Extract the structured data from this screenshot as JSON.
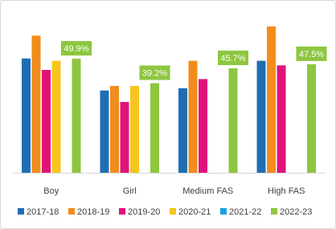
{
  "chart_data": {
    "type": "bar",
    "categories": [
      "Boy",
      "Girl",
      "Medium FAS",
      "High FAS"
    ],
    "series": [
      {
        "name": "2017-18",
        "color": "#1f6eb4",
        "values": [
          50,
          36,
          37,
          49
        ]
      },
      {
        "name": "2018-19",
        "color": "#f28c1c",
        "values": [
          60,
          38,
          49,
          64
        ]
      },
      {
        "name": "2019-20",
        "color": "#e0137a",
        "values": [
          45,
          31,
          41,
          47
        ]
      },
      {
        "name": "2020-21",
        "color": "#f7c51b",
        "values": [
          49,
          38,
          null,
          null
        ]
      },
      {
        "name": "2021-22",
        "color": "#1aa3d9",
        "values": [
          null,
          null,
          null,
          null
        ]
      },
      {
        "name": "2022-23",
        "color": "#8dc63f",
        "values": [
          49.9,
          39.2,
          45.7,
          47.5
        ],
        "value_labels": [
          "49.9%",
          "39.2%",
          "45.7%",
          "47.5%"
        ]
      }
    ],
    "legend": "bottom"
  }
}
